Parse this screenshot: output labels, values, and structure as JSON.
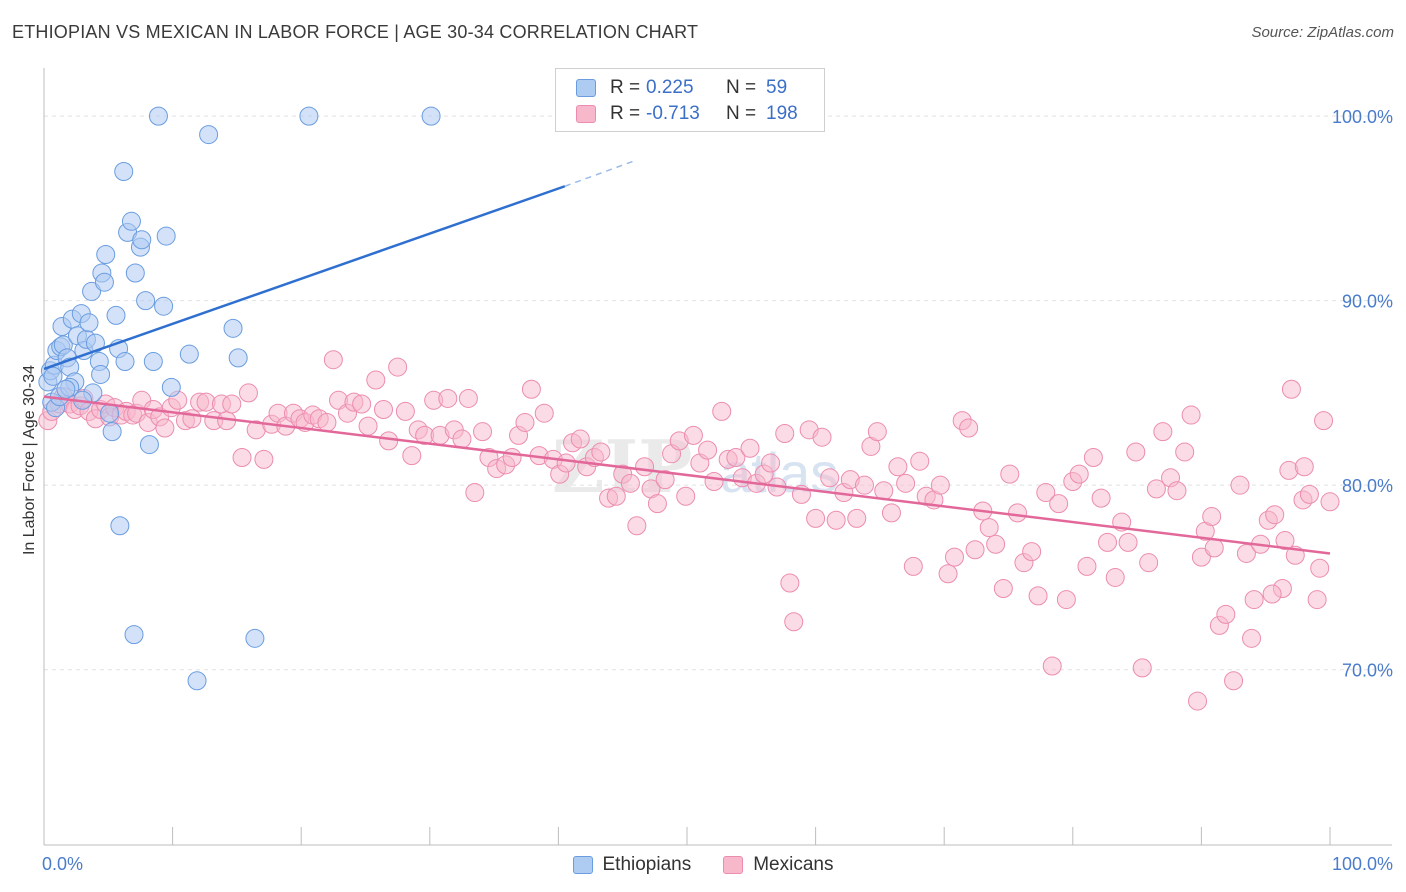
{
  "title": "ETHIOPIAN VS MEXICAN IN LABOR FORCE | AGE 30-34 CORRELATION CHART",
  "source": "Source: ZipAtlas.com",
  "legend": {
    "r_label": "R =",
    "n_label": "N =",
    "ethiopians": {
      "r": "0.225",
      "n": "59"
    },
    "mexicans": {
      "r": "-0.713",
      "n": "198"
    }
  },
  "bottom_legend": {
    "ethiopians": "Ethiopians",
    "mexicans": "Mexicans"
  },
  "colors": {
    "ethiopians_fill": "#aecbf2",
    "ethiopians_stroke": "#6a9de0",
    "ethiopians_line": "#2f6fd0",
    "mexicans_fill": "#f7b8cb",
    "mexicans_stroke": "#ec8db0",
    "mexicans_line": "#e3689a",
    "axis_text": "#4a7cc9",
    "grid": "#e2e2e2"
  },
  "chart_data": {
    "type": "scatter",
    "title": "ETHIOPIAN VS MEXICAN IN LABOR FORCE | AGE 30-34 CORRELATION CHART",
    "xlabel": "",
    "ylabel": "In Labor Force | Age 30-34",
    "xlim": [
      0,
      100
    ],
    "ylim": [
      60.5,
      102.5
    ],
    "x_tick_labels": [
      {
        "value": 0,
        "label": "0.0%"
      },
      {
        "value": 100,
        "label": "100.0%"
      }
    ],
    "y_tick_labels": [
      {
        "value": 70,
        "label": "70.0%"
      },
      {
        "value": 80,
        "label": "80.0%"
      },
      {
        "value": 90,
        "label": "90.0%"
      },
      {
        "value": 100,
        "label": "100.0%"
      }
    ],
    "series": [
      {
        "name": "Ethiopians",
        "r": 0.225,
        "n": 59,
        "trend": {
          "x0": 0,
          "y0": 86.3,
          "x1": 40.5,
          "y1": 96.2,
          "dash_to_x": 46,
          "dash_to_y": 97.6
        },
        "points": [
          [
            0.3,
            85.6
          ],
          [
            0.5,
            86.2
          ],
          [
            0.6,
            84.5
          ],
          [
            0.8,
            86.5
          ],
          [
            0.9,
            84.2
          ],
          [
            1.0,
            87.3
          ],
          [
            1.3,
            87.5
          ],
          [
            1.4,
            88.6
          ],
          [
            1.5,
            87.6
          ],
          [
            1.8,
            86.9
          ],
          [
            2.0,
            86.4
          ],
          [
            2.2,
            89.0
          ],
          [
            2.4,
            85.6
          ],
          [
            2.6,
            88.1
          ],
          [
            2.9,
            89.3
          ],
          [
            3.1,
            87.3
          ],
          [
            3.3,
            87.9
          ],
          [
            3.5,
            88.8
          ],
          [
            3.7,
            90.5
          ],
          [
            3.8,
            85.0
          ],
          [
            4.0,
            87.7
          ],
          [
            4.3,
            86.7
          ],
          [
            4.4,
            86.0
          ],
          [
            4.5,
            91.5
          ],
          [
            4.8,
            92.5
          ],
          [
            4.7,
            91.0
          ],
          [
            5.1,
            83.9
          ],
          [
            5.3,
            82.9
          ],
          [
            5.6,
            89.2
          ],
          [
            5.8,
            87.4
          ],
          [
            5.9,
            77.8
          ],
          [
            6.2,
            97.0
          ],
          [
            6.3,
            86.7
          ],
          [
            6.5,
            93.7
          ],
          [
            6.8,
            94.3
          ],
          [
            7.0,
            71.9
          ],
          [
            7.1,
            91.5
          ],
          [
            7.5,
            92.9
          ],
          [
            7.6,
            93.3
          ],
          [
            7.9,
            90.0
          ],
          [
            8.2,
            82.2
          ],
          [
            8.5,
            86.7
          ],
          [
            8.9,
            100.0
          ],
          [
            9.3,
            89.7
          ],
          [
            9.5,
            93.5
          ],
          [
            9.9,
            85.3
          ],
          [
            11.3,
            87.1
          ],
          [
            11.9,
            69.4
          ],
          [
            12.8,
            99.0
          ],
          [
            14.7,
            88.5
          ],
          [
            15.1,
            86.9
          ],
          [
            16.4,
            71.7
          ],
          [
            20.6,
            100.0
          ],
          [
            30.1,
            100.0
          ],
          [
            1.2,
            84.8
          ],
          [
            2.0,
            85.3
          ],
          [
            3.0,
            84.6
          ],
          [
            0.7,
            85.9
          ],
          [
            1.7,
            85.2
          ]
        ]
      },
      {
        "name": "Mexicans",
        "r": -0.713,
        "n": 198,
        "trend": {
          "x0": 0,
          "y0": 84.8,
          "x1": 100,
          "y1": 76.3
        },
        "points": [
          [
            0.3,
            83.5
          ],
          [
            0.6,
            84.0
          ],
          [
            1.2,
            84.4
          ],
          [
            1.5,
            84.8
          ],
          [
            2.0,
            84.4
          ],
          [
            2.4,
            84.1
          ],
          [
            2.8,
            84.3
          ],
          [
            3.1,
            84.7
          ],
          [
            3.5,
            84.0
          ],
          [
            4.0,
            83.6
          ],
          [
            4.4,
            84.1
          ],
          [
            4.8,
            84.4
          ],
          [
            5.1,
            83.7
          ],
          [
            5.5,
            84.2
          ],
          [
            6.0,
            83.8
          ],
          [
            6.4,
            84.0
          ],
          [
            6.9,
            83.8
          ],
          [
            7.2,
            83.9
          ],
          [
            7.6,
            84.6
          ],
          [
            8.1,
            83.4
          ],
          [
            8.5,
            84.1
          ],
          [
            9.0,
            83.7
          ],
          [
            9.4,
            83.1
          ],
          [
            9.9,
            84.2
          ],
          [
            10.4,
            84.6
          ],
          [
            11.0,
            83.5
          ],
          [
            11.5,
            83.6
          ],
          [
            12.1,
            84.5
          ],
          [
            12.6,
            84.5
          ],
          [
            13.2,
            83.5
          ],
          [
            13.8,
            84.4
          ],
          [
            14.2,
            83.5
          ],
          [
            14.6,
            84.4
          ],
          [
            15.4,
            81.5
          ],
          [
            15.9,
            85.0
          ],
          [
            16.5,
            83.0
          ],
          [
            17.1,
            81.4
          ],
          [
            17.7,
            83.3
          ],
          [
            18.2,
            83.9
          ],
          [
            18.8,
            83.2
          ],
          [
            19.4,
            83.9
          ],
          [
            19.9,
            83.6
          ],
          [
            20.3,
            83.4
          ],
          [
            20.9,
            83.8
          ],
          [
            21.4,
            83.6
          ],
          [
            22.0,
            83.4
          ],
          [
            22.5,
            86.8
          ],
          [
            22.9,
            84.6
          ],
          [
            23.6,
            83.9
          ],
          [
            24.1,
            84.5
          ],
          [
            24.7,
            84.4
          ],
          [
            25.2,
            83.2
          ],
          [
            25.8,
            85.7
          ],
          [
            26.4,
            84.1
          ],
          [
            26.8,
            82.4
          ],
          [
            27.5,
            86.4
          ],
          [
            28.1,
            84.0
          ],
          [
            28.6,
            81.6
          ],
          [
            29.1,
            83.0
          ],
          [
            29.6,
            82.7
          ],
          [
            30.3,
            84.6
          ],
          [
            30.8,
            82.7
          ],
          [
            31.4,
            84.7
          ],
          [
            31.9,
            83.0
          ],
          [
            32.5,
            82.5
          ],
          [
            33.0,
            84.7
          ],
          [
            33.5,
            79.6
          ],
          [
            34.1,
            82.9
          ],
          [
            34.6,
            81.5
          ],
          [
            35.2,
            80.9
          ],
          [
            35.9,
            81.1
          ],
          [
            36.4,
            81.5
          ],
          [
            36.9,
            82.7
          ],
          [
            37.4,
            83.4
          ],
          [
            37.9,
            85.2
          ],
          [
            38.5,
            81.6
          ],
          [
            38.9,
            83.9
          ],
          [
            39.6,
            81.4
          ],
          [
            40.1,
            80.6
          ],
          [
            40.6,
            81.2
          ],
          [
            41.1,
            82.3
          ],
          [
            41.7,
            82.5
          ],
          [
            42.2,
            81.0
          ],
          [
            42.8,
            81.5
          ],
          [
            43.3,
            81.8
          ],
          [
            43.9,
            79.3
          ],
          [
            44.5,
            79.4
          ],
          [
            45.0,
            80.6
          ],
          [
            45.6,
            80.1
          ],
          [
            46.1,
            77.8
          ],
          [
            46.7,
            81.0
          ],
          [
            47.2,
            79.8
          ],
          [
            47.7,
            79.0
          ],
          [
            48.3,
            80.3
          ],
          [
            48.8,
            81.7
          ],
          [
            49.4,
            82.4
          ],
          [
            49.9,
            79.4
          ],
          [
            50.5,
            82.7
          ],
          [
            51.0,
            81.2
          ],
          [
            51.6,
            81.9
          ],
          [
            52.1,
            80.2
          ],
          [
            52.7,
            84.0
          ],
          [
            53.2,
            81.4
          ],
          [
            53.8,
            81.5
          ],
          [
            54.3,
            80.4
          ],
          [
            54.9,
            82.0
          ],
          [
            55.4,
            80.1
          ],
          [
            56.0,
            80.6
          ],
          [
            56.5,
            81.2
          ],
          [
            57.0,
            79.9
          ],
          [
            57.6,
            82.8
          ],
          [
            58.0,
            74.7
          ],
          [
            58.3,
            72.6
          ],
          [
            58.9,
            79.5
          ],
          [
            59.5,
            83.0
          ],
          [
            60.0,
            78.2
          ],
          [
            60.5,
            82.6
          ],
          [
            61.1,
            80.4
          ],
          [
            61.6,
            78.1
          ],
          [
            62.2,
            79.6
          ],
          [
            62.7,
            80.3
          ],
          [
            63.2,
            78.2
          ],
          [
            63.8,
            80.0
          ],
          [
            64.3,
            82.1
          ],
          [
            64.8,
            82.9
          ],
          [
            65.3,
            79.7
          ],
          [
            65.9,
            78.5
          ],
          [
            66.4,
            81.0
          ],
          [
            67.0,
            80.1
          ],
          [
            67.6,
            75.6
          ],
          [
            68.1,
            81.3
          ],
          [
            68.6,
            79.4
          ],
          [
            69.2,
            79.2
          ],
          [
            69.7,
            80.0
          ],
          [
            70.3,
            75.2
          ],
          [
            70.8,
            76.1
          ],
          [
            71.4,
            83.5
          ],
          [
            71.9,
            83.1
          ],
          [
            72.4,
            76.5
          ],
          [
            73.0,
            78.6
          ],
          [
            73.5,
            77.7
          ],
          [
            74.0,
            76.8
          ],
          [
            74.6,
            74.4
          ],
          [
            75.1,
            80.6
          ],
          [
            75.7,
            78.5
          ],
          [
            76.2,
            75.8
          ],
          [
            76.8,
            76.4
          ],
          [
            77.3,
            74.0
          ],
          [
            77.9,
            79.6
          ],
          [
            78.4,
            70.2
          ],
          [
            78.9,
            79.0
          ],
          [
            79.5,
            73.8
          ],
          [
            80.0,
            80.2
          ],
          [
            80.5,
            80.6
          ],
          [
            81.1,
            75.6
          ],
          [
            81.6,
            81.5
          ],
          [
            82.2,
            79.3
          ],
          [
            82.7,
            76.9
          ],
          [
            83.3,
            75.0
          ],
          [
            83.8,
            78.0
          ],
          [
            84.3,
            76.9
          ],
          [
            84.9,
            81.8
          ],
          [
            85.4,
            70.1
          ],
          [
            85.9,
            75.8
          ],
          [
            86.5,
            79.8
          ],
          [
            87.0,
            82.9
          ],
          [
            87.6,
            80.4
          ],
          [
            88.1,
            79.7
          ],
          [
            88.7,
            81.8
          ],
          [
            89.2,
            83.8
          ],
          [
            89.7,
            68.3
          ],
          [
            90.3,
            77.5
          ],
          [
            90.8,
            78.3
          ],
          [
            91.4,
            72.4
          ],
          [
            91.9,
            73.0
          ],
          [
            92.5,
            69.4
          ],
          [
            93.0,
            80.0
          ],
          [
            93.5,
            76.3
          ],
          [
            94.1,
            73.8
          ],
          [
            94.6,
            76.8
          ],
          [
            95.2,
            78.1
          ],
          [
            95.7,
            78.4
          ],
          [
            96.3,
            74.4
          ],
          [
            96.8,
            80.8
          ],
          [
            97.3,
            76.2
          ],
          [
            97.9,
            79.2
          ],
          [
            98.4,
            79.5
          ],
          [
            99.0,
            73.8
          ],
          [
            99.5,
            83.5
          ],
          [
            100.0,
            79.1
          ],
          [
            96.5,
            77.0
          ],
          [
            90.0,
            76.1
          ],
          [
            91.0,
            76.6
          ],
          [
            93.9,
            71.7
          ],
          [
            97.0,
            85.2
          ],
          [
            99.2,
            75.5
          ],
          [
            95.5,
            74.1
          ],
          [
            98.0,
            81.0
          ]
        ]
      }
    ]
  }
}
